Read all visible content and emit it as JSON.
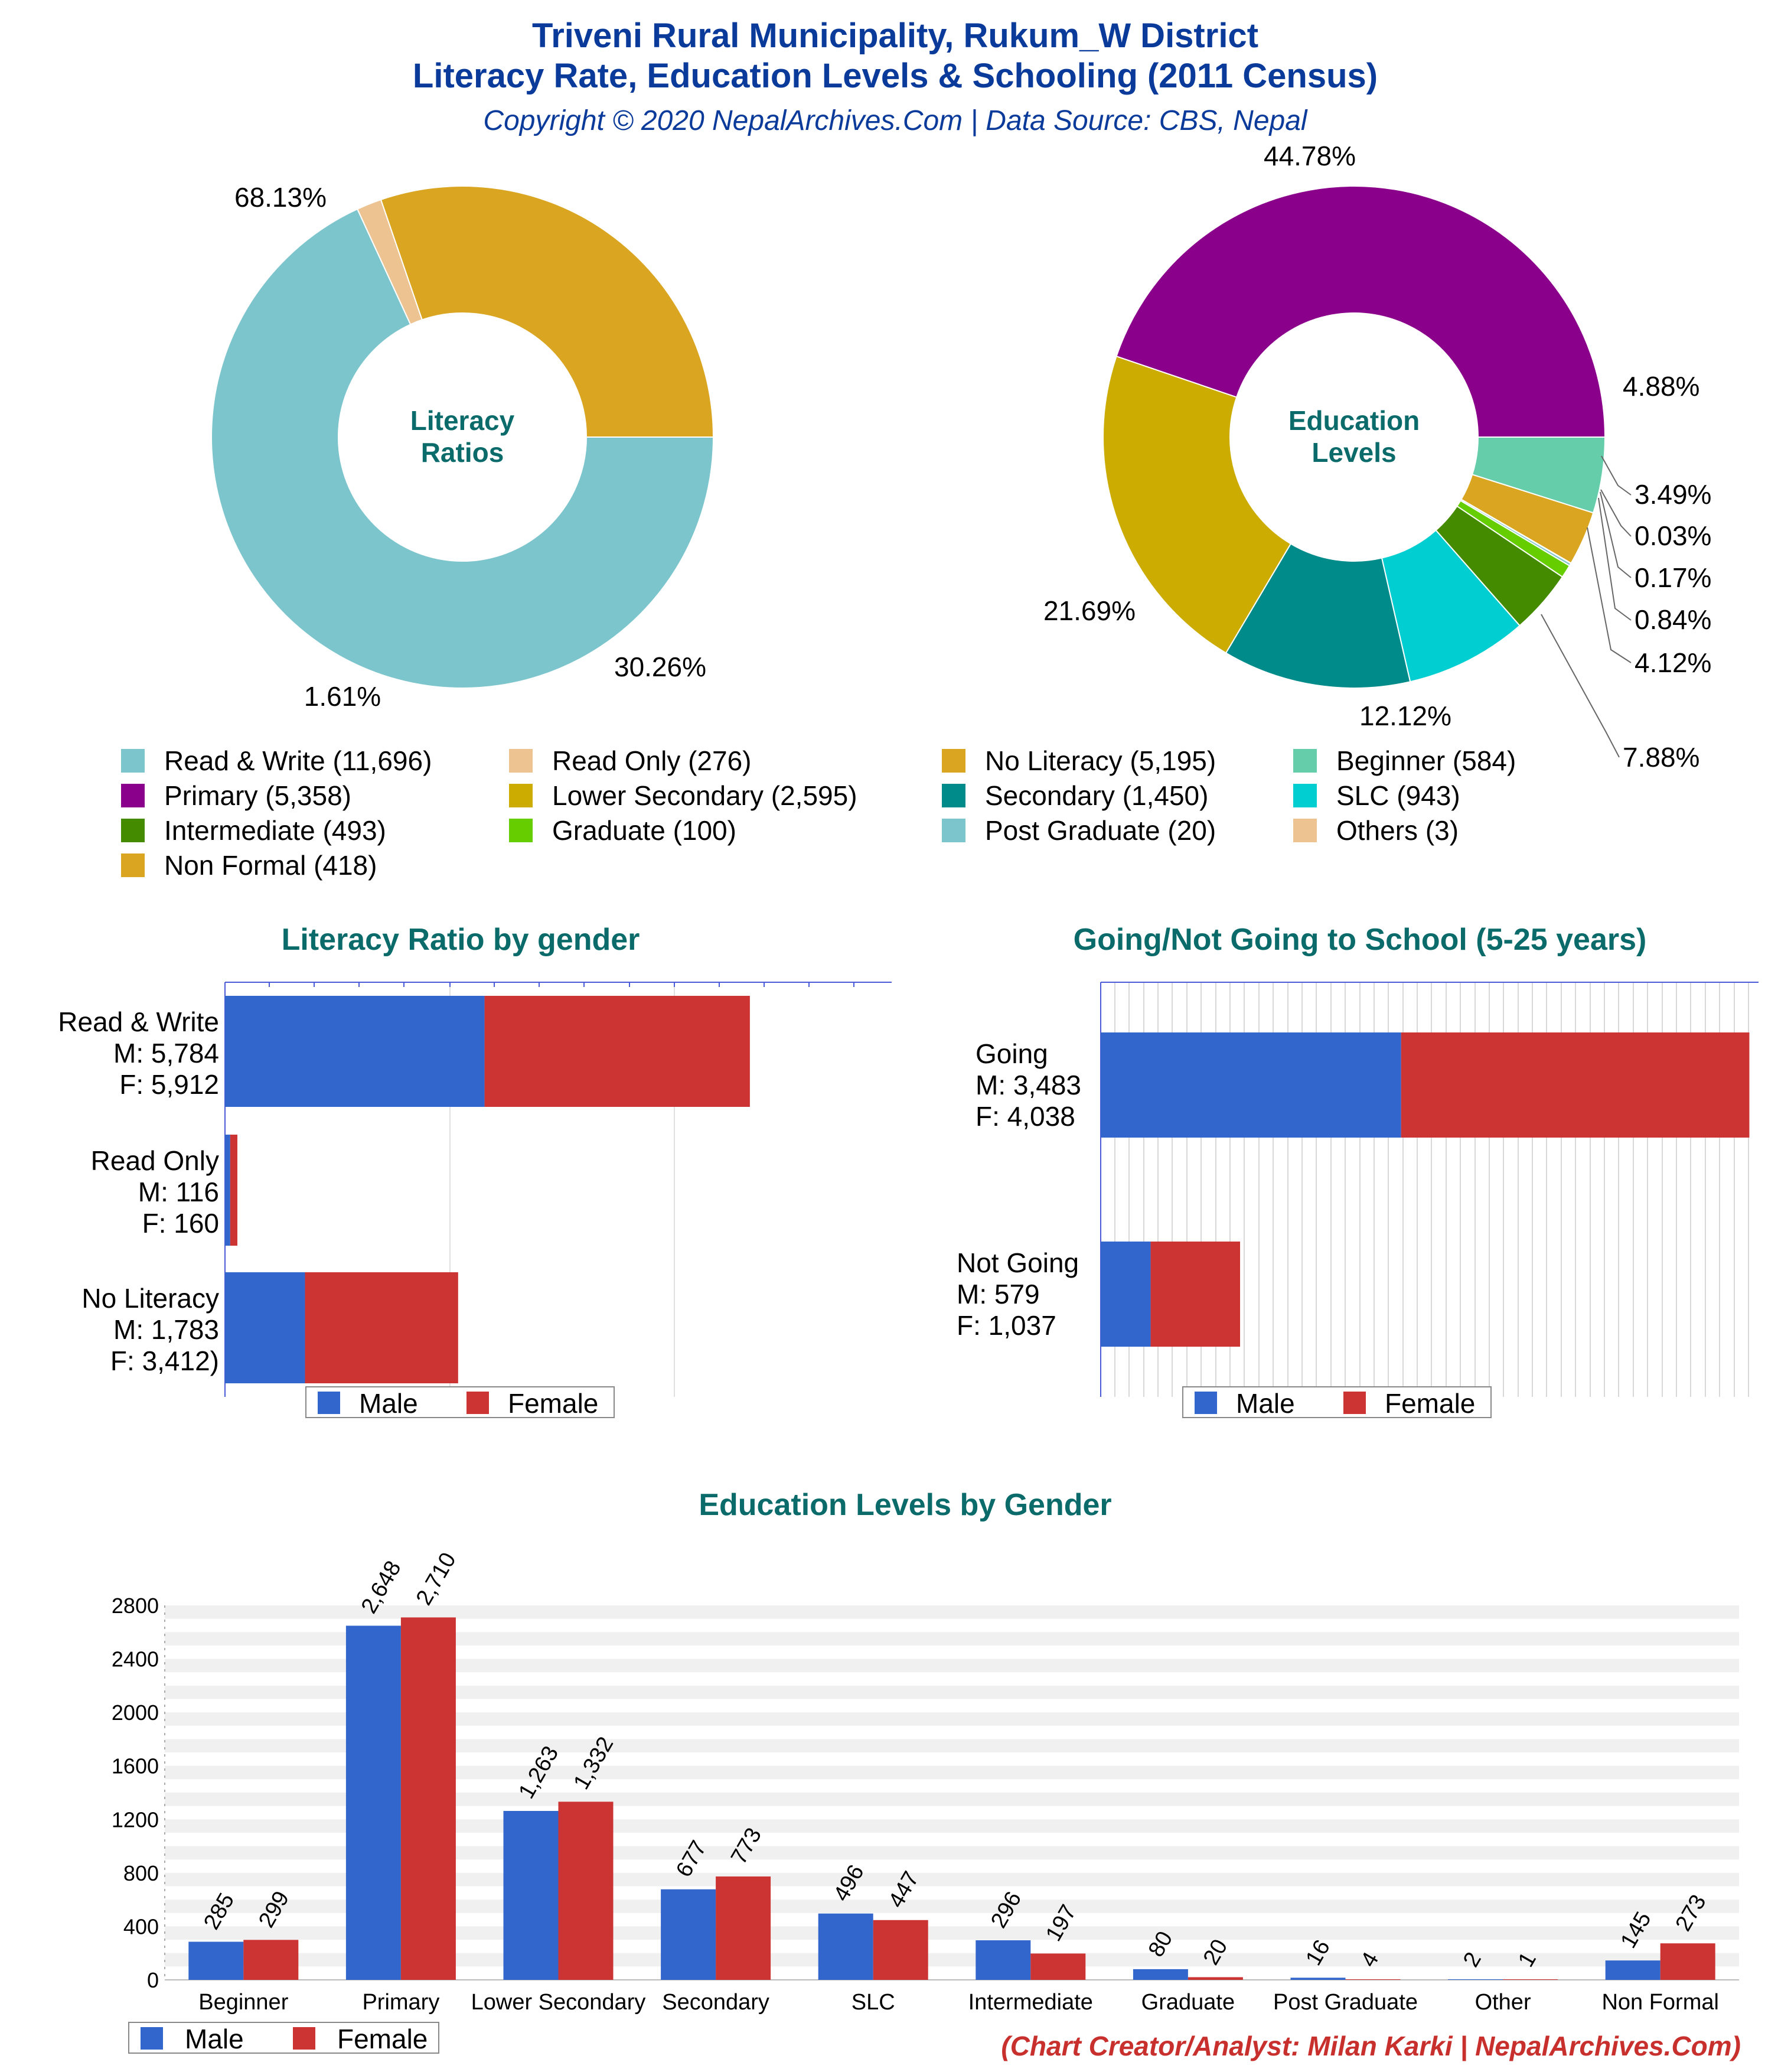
{
  "header": {
    "title_line1": "Triveni Rural Municipality, Rukum_W District",
    "title_line2": "Literacy Rate, Education Levels & Schooling (2011 Census)",
    "subtitle": "Copyright © 2020 NepalArchives.Com | Data Source: CBS, Nepal"
  },
  "credit": "(Chart Creator/Analyst: Milan Karki | NepalArchives.Com)",
  "legend": [
    {
      "label": "Read & Write (11,696)",
      "color": "#7cc5cc"
    },
    {
      "label": "Read Only (276)",
      "color": "#ecc391"
    },
    {
      "label": "No Literacy (5,195)",
      "color": "#daa520"
    },
    {
      "label": "Beginner (584)",
      "color": "#66cdaa"
    },
    {
      "label": "Primary (5,358)",
      "color": "#8b008b"
    },
    {
      "label": "Lower Secondary (2,595)",
      "color": "#ccac00"
    },
    {
      "label": "Secondary (1,450)",
      "color": "#008b8b"
    },
    {
      "label": "SLC (943)",
      "color": "#00ced1"
    },
    {
      "label": "Intermediate (493)",
      "color": "#458b00"
    },
    {
      "label": "Graduate (100)",
      "color": "#66cd00"
    },
    {
      "label": "Post Graduate (20)",
      "color": "#7cc5cc"
    },
    {
      "label": "Others (3)",
      "color": "#ecc391"
    },
    {
      "label": "Non Formal (418)",
      "color": "#daa520"
    }
  ],
  "chart_data": [
    {
      "type": "pie",
      "center_label": [
        "Literacy",
        "Ratios"
      ],
      "slices": [
        {
          "name": "Read & Write",
          "value": 11696,
          "pct": "68.13%",
          "color": "#7cc5cc"
        },
        {
          "name": "Read Only",
          "value": 276,
          "pct": "1.61%",
          "color": "#ecc391"
        },
        {
          "name": "No Literacy",
          "value": 5195,
          "pct": "30.26%",
          "color": "#daa520"
        }
      ]
    },
    {
      "type": "pie",
      "center_label": [
        "Education",
        "Levels"
      ],
      "slices": [
        {
          "name": "Beginner",
          "value": 584,
          "pct": "4.88%",
          "color": "#66cdaa"
        },
        {
          "name": "Non Formal",
          "value": 418,
          "pct": "3.49%",
          "color": "#daa520"
        },
        {
          "name": "Others",
          "value": 3,
          "pct": "0.03%",
          "color": "#ecc391"
        },
        {
          "name": "Post Graduate",
          "value": 20,
          "pct": "0.17%",
          "color": "#7cc5cc"
        },
        {
          "name": "Graduate",
          "value": 100,
          "pct": "0.84%",
          "color": "#66cd00"
        },
        {
          "name": "Intermediate",
          "value": 493,
          "pct": "4.12%",
          "color": "#458b00"
        },
        {
          "name": "SLC",
          "value": 943,
          "pct": "7.88%",
          "color": "#00ced1"
        },
        {
          "name": "Secondary",
          "value": 1450,
          "pct": "12.12%",
          "color": "#008b8b"
        },
        {
          "name": "Lower Secondary",
          "value": 2595,
          "pct": "21.69%",
          "color": "#ccac00"
        },
        {
          "name": "Primary",
          "value": 5358,
          "pct": "44.78%",
          "color": "#8b008b"
        }
      ]
    },
    {
      "type": "bar",
      "orientation": "horizontal",
      "stacked": true,
      "title": "Literacy Ratio by gender",
      "categories": [
        [
          "Read & Write",
          "M: 5,784",
          "F: 5,912"
        ],
        [
          "Read Only",
          "M: 116",
          "F: 160"
        ],
        [
          "No Literacy",
          "M: 1,783",
          "F: 3,412)"
        ]
      ],
      "series": [
        {
          "name": "Male",
          "values": [
            5784,
            116,
            1783
          ],
          "color": "#3366cc"
        },
        {
          "name": "Female",
          "values": [
            5912,
            160,
            3412
          ],
          "color": "#cc3333"
        }
      ],
      "xlim": [
        0,
        15000
      ]
    },
    {
      "type": "bar",
      "orientation": "horizontal",
      "stacked": true,
      "title": "Going/Not Going to School (5-25 years)",
      "categories": [
        [
          "Going",
          "M: 3,483",
          "F: 4,038"
        ],
        [
          "Not Going",
          "M: 579",
          "F: 1,037"
        ]
      ],
      "series": [
        {
          "name": "Male",
          "values": [
            3483,
            579
          ],
          "color": "#3366cc"
        },
        {
          "name": "Female",
          "values": [
            4038,
            1037
          ],
          "color": "#cc3333"
        }
      ],
      "xlim": [
        0,
        7600
      ]
    },
    {
      "type": "bar",
      "title": "Education Levels by Gender",
      "categories": [
        "Beginner",
        "Primary",
        "Lower Secondary",
        "Secondary",
        "SLC",
        "Intermediate",
        "Graduate",
        "Post Graduate",
        "Other",
        "Non Formal"
      ],
      "series": [
        {
          "name": "Male",
          "values": [
            285,
            2648,
            1263,
            677,
            496,
            296,
            80,
            16,
            2,
            145
          ],
          "labels": [
            "285",
            "2,648",
            "1,263",
            "677",
            "496",
            "296",
            "80",
            "16",
            "2",
            "145"
          ],
          "color": "#3366cc"
        },
        {
          "name": "Female",
          "values": [
            299,
            2710,
            1332,
            773,
            447,
            197,
            20,
            4,
            1,
            273
          ],
          "labels": [
            "299",
            "2,710",
            "1,332",
            "773",
            "447",
            "197",
            "20",
            "4",
            "1",
            "273"
          ],
          "color": "#cc3333"
        }
      ],
      "yticks": [
        "0",
        "400",
        "800",
        "1200",
        "1600",
        "2000",
        "2400",
        "2800"
      ],
      "ylim": [
        0,
        2800
      ]
    }
  ]
}
